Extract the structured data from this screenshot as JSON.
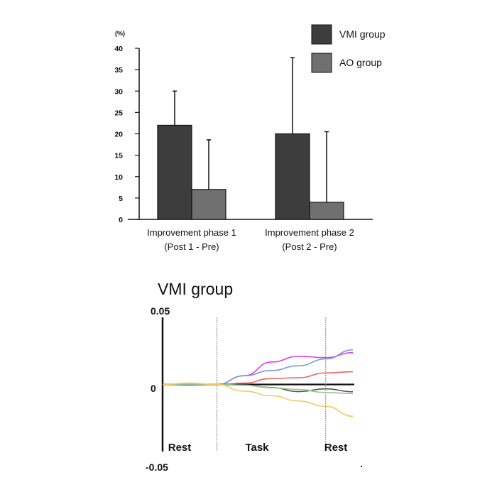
{
  "chart_data": [
    {
      "type": "bar",
      "ylabel": "(%)",
      "ylim": [
        0,
        40
      ],
      "yticks": [
        0,
        5,
        10,
        15,
        20,
        25,
        30,
        35,
        40
      ],
      "categories": [
        [
          "Improvement phase 1",
          "(Post 1 - Pre)"
        ],
        [
          "Improvement phase 2",
          "(Post 2 - Pre)"
        ]
      ],
      "series": [
        {
          "name": "VMI group",
          "values": [
            22,
            20
          ],
          "error_upper": [
            30,
            37.8
          ],
          "color": "#3d3d3d"
        },
        {
          "name": "AO group",
          "values": [
            7,
            4
          ],
          "error_upper": [
            18.6,
            20.5
          ],
          "color": "#707070"
        }
      ],
      "legend": "top-right",
      "grid": false
    },
    {
      "type": "line",
      "title": "VMI group",
      "ylim": [
        -0.05,
        0.05
      ],
      "ytick_labels": [
        "0.05",
        "0",
        "-0.05"
      ],
      "yticks": [
        0.05,
        0,
        -0.05
      ],
      "phases": [
        "Rest",
        "Task",
        "Rest"
      ],
      "x": [
        0,
        1,
        2,
        3,
        4,
        5,
        6,
        7
      ],
      "phase_boundaries": [
        2,
        6
      ],
      "series": [
        {
          "color": "#e040e8",
          "values": [
            0,
            -0.0005,
            0,
            0.0065,
            0.0167,
            0.021,
            0.02,
            0.0237
          ]
        },
        {
          "color": "#7a95dd",
          "values": [
            0,
            0.0003,
            0,
            0.0065,
            0.0104,
            0.0139,
            0.019,
            0.0258
          ]
        },
        {
          "color": "#f06464",
          "values": [
            0,
            0,
            0,
            0.001,
            0.0044,
            0.005,
            0.0086,
            0.0095
          ]
        },
        {
          "color": "#555555",
          "values": [
            0,
            0,
            0,
            -0.0005,
            -0.0023,
            -0.0053,
            -0.0033,
            -0.0054
          ]
        },
        {
          "color": "#98c48a",
          "values": [
            0,
            0.0002,
            0,
            -0.0005,
            -0.0025,
            -0.0037,
            -0.006,
            -0.0068
          ]
        },
        {
          "color": "#f5c860",
          "values": [
            0,
            0.001,
            0,
            -0.005,
            -0.0084,
            -0.0123,
            -0.0163,
            -0.0237
          ]
        }
      ],
      "grid": false
    }
  ]
}
